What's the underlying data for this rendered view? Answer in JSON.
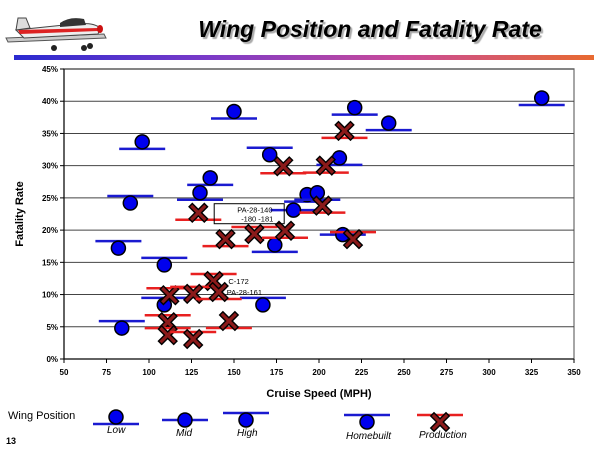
{
  "slide": {
    "title": "Wing Position and Fatality Rate",
    "number": "13",
    "logo_icon": "airplane-icon"
  },
  "legend": {
    "heading": "Wing Position",
    "low": "Low",
    "mid": "Mid",
    "high": "High",
    "homebuilt": "Homebuilt",
    "production": "Production"
  },
  "annotations": [
    {
      "text": "PA-28-140",
      "text2": "-180 -181",
      "x": 146,
      "y": 22.7,
      "boxed": true
    },
    {
      "text": "C-172",
      "x": 142,
      "y": 12.1
    },
    {
      "text": "PA-28-161",
      "x": 141,
      "y": 10.4
    }
  ],
  "colors": {
    "homebuilt": "#0000ee",
    "homebuilt_line": "#1a1ad0",
    "production_line": "#e82020",
    "production_x": "#8b1a1a"
  },
  "chart_data": {
    "type": "scatter",
    "title": "Wing Position and Fatality Rate",
    "xlabel": "Cruise Speed (MPH)",
    "ylabel": "Fatality Rate",
    "xlim": [
      50,
      350
    ],
    "ylim": [
      0,
      45
    ],
    "xticks": [
      "50",
      "75",
      "100",
      "125",
      "150",
      "175",
      "200",
      "225",
      "250",
      "275",
      "300",
      "325",
      "350"
    ],
    "yticks": [
      "0%",
      "5%",
      "10%",
      "15%",
      "20%",
      "25%",
      "30%",
      "35%",
      "40%",
      "45%"
    ],
    "grid": "horizontal",
    "points": [
      {
        "x": 96,
        "y": 33.7,
        "wing": "low",
        "type": "homebuilt"
      },
      {
        "x": 136,
        "y": 28.1,
        "wing": "low",
        "type": "homebuilt"
      },
      {
        "x": 130,
        "y": 25.8,
        "wing": "low",
        "type": "homebuilt"
      },
      {
        "x": 89,
        "y": 24.2,
        "wing": "high",
        "type": "homebuilt"
      },
      {
        "x": 82,
        "y": 17.2,
        "wing": "high",
        "type": "homebuilt"
      },
      {
        "x": 109,
        "y": 14.6,
        "wing": "high",
        "type": "homebuilt"
      },
      {
        "x": 109,
        "y": 8.4,
        "wing": "high",
        "type": "homebuilt"
      },
      {
        "x": 84,
        "y": 4.8,
        "wing": "high",
        "type": "homebuilt"
      },
      {
        "x": 150,
        "y": 38.4,
        "wing": "low",
        "type": "homebuilt"
      },
      {
        "x": 331,
        "y": 40.5,
        "wing": "low",
        "type": "homebuilt"
      },
      {
        "x": 221,
        "y": 39.0,
        "wing": "low",
        "type": "homebuilt"
      },
      {
        "x": 241,
        "y": 36.6,
        "wing": "low",
        "type": "homebuilt"
      },
      {
        "x": 212,
        "y": 31.2,
        "wing": "low",
        "type": "homebuilt"
      },
      {
        "x": 193,
        "y": 25.5,
        "wing": "low",
        "type": "homebuilt"
      },
      {
        "x": 199,
        "y": 25.8,
        "wing": "low",
        "type": "homebuilt"
      },
      {
        "x": 214,
        "y": 19.3,
        "wing": "mid",
        "type": "homebuilt"
      },
      {
        "x": 171,
        "y": 31.7,
        "wing": "high",
        "type": "homebuilt"
      },
      {
        "x": 185,
        "y": 23.1,
        "wing": "mid",
        "type": "homebuilt"
      },
      {
        "x": 174,
        "y": 17.7,
        "wing": "low",
        "type": "homebuilt"
      },
      {
        "x": 167,
        "y": 8.4,
        "wing": "high",
        "type": "homebuilt"
      },
      {
        "x": 129,
        "y": 22.7,
        "wing": "low",
        "type": "production"
      },
      {
        "x": 145,
        "y": 18.6,
        "wing": "low",
        "type": "production"
      },
      {
        "x": 138,
        "y": 12.1,
        "wing": "high",
        "type": "production"
      },
      {
        "x": 112,
        "y": 9.9,
        "wing": "high",
        "type": "production"
      },
      {
        "x": 126,
        "y": 10.1,
        "wing": "high",
        "type": "production"
      },
      {
        "x": 141,
        "y": 10.4,
        "wing": "low",
        "type": "production"
      },
      {
        "x": 111,
        "y": 5.7,
        "wing": "high",
        "type": "production"
      },
      {
        "x": 111,
        "y": 3.7,
        "wing": "high",
        "type": "production"
      },
      {
        "x": 126,
        "y": 3.1,
        "wing": "high",
        "type": "production"
      },
      {
        "x": 147,
        "y": 5.9,
        "wing": "low",
        "type": "production"
      },
      {
        "x": 215,
        "y": 35.4,
        "wing": "low",
        "type": "production"
      },
      {
        "x": 204,
        "y": 30.0,
        "wing": "low",
        "type": "production"
      },
      {
        "x": 202,
        "y": 23.8,
        "wing": "low",
        "type": "production"
      },
      {
        "x": 220,
        "y": 18.6,
        "wing": "high",
        "type": "production"
      },
      {
        "x": 179,
        "y": 29.9,
        "wing": "low",
        "type": "production"
      },
      {
        "x": 162,
        "y": 19.4,
        "wing": "high",
        "type": "production"
      },
      {
        "x": 180,
        "y": 19.9,
        "wing": "low",
        "type": "production"
      }
    ]
  }
}
